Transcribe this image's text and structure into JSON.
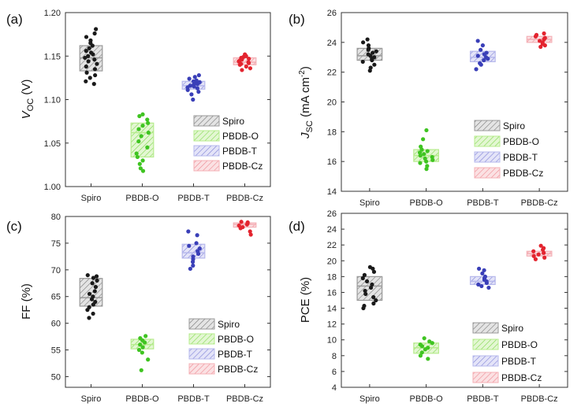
{
  "colors": {
    "Spiro": {
      "fill": "#9a9a9a",
      "dot": "#1a1a1a"
    },
    "PBDB-O": {
      "fill": "#b7ec8e",
      "dot": "#3fc421"
    },
    "PBDB-T": {
      "fill": "#b6b8ec",
      "dot": "#3a3fb8"
    },
    "PBDB-Cz": {
      "fill": "#f4b0b6",
      "dot": "#e3242f"
    }
  },
  "chart_data": [
    {
      "type": "box",
      "panel_label": "(a)",
      "ylabel_main": "V",
      "ylabel_sub": "OC",
      "ylabel_unit": " (V)",
      "categories": [
        "Spiro",
        "PBDB-O",
        "PBDB-T",
        "PBDB-Cz"
      ],
      "ylim": [
        1.0,
        1.2
      ],
      "yticks": [
        "1.00",
        "1.05",
        "1.10",
        "1.15",
        "1.20"
      ],
      "legend": [
        "Spiro",
        "PBDB-O",
        "PBDB-T",
        "PBDB-Cz"
      ],
      "series": [
        {
          "name": "Spiro",
          "q1": 1.133,
          "median": 1.148,
          "q3": 1.162,
          "points": [
            1.118,
            1.121,
            1.125,
            1.128,
            1.131,
            1.135,
            1.138,
            1.141,
            1.144,
            1.146,
            1.148,
            1.15,
            1.152,
            1.154,
            1.156,
            1.159,
            1.162,
            1.165,
            1.168,
            1.172,
            1.176,
            1.181
          ]
        },
        {
          "name": "PBDB-O",
          "q1": 1.034,
          "median": 1.062,
          "q3": 1.073,
          "points": [
            1.018,
            1.021,
            1.026,
            1.03,
            1.034,
            1.038,
            1.045,
            1.052,
            1.058,
            1.062,
            1.066,
            1.07,
            1.073,
            1.077,
            1.081,
            1.083
          ]
        },
        {
          "name": "PBDB-T",
          "q1": 1.112,
          "median": 1.116,
          "q3": 1.121,
          "points": [
            1.1,
            1.106,
            1.109,
            1.111,
            1.113,
            1.114,
            1.115,
            1.116,
            1.117,
            1.118,
            1.119,
            1.12,
            1.121,
            1.122,
            1.124,
            1.126,
            1.128
          ]
        },
        {
          "name": "PBDB-Cz",
          "q1": 1.14,
          "median": 1.143,
          "q3": 1.148,
          "points": [
            1.134,
            1.136,
            1.138,
            1.14,
            1.141,
            1.142,
            1.143,
            1.144,
            1.145,
            1.146,
            1.147,
            1.148,
            1.149,
            1.15,
            1.152
          ]
        }
      ]
    },
    {
      "type": "box",
      "panel_label": "(b)",
      "ylabel_main": "J",
      "ylabel_sub": "SC",
      "ylabel_unit": " (mA cm",
      "ylabel_sup": "-2",
      "ylabel_close": ")",
      "categories": [
        "Spiro",
        "PBDB-O",
        "PBDB-T",
        "PBDB-Cz"
      ],
      "ylim": [
        14,
        26
      ],
      "yticks": [
        "14",
        "16",
        "18",
        "20",
        "22",
        "24",
        "26"
      ],
      "legend": [
        "Spiro",
        "PBDB-O",
        "PBDB-T",
        "PBDB-Cz"
      ],
      "series": [
        {
          "name": "Spiro",
          "q1": 22.8,
          "median": 23.1,
          "q3": 23.6,
          "points": [
            22.1,
            22.3,
            22.5,
            22.7,
            22.8,
            22.9,
            23.0,
            23.1,
            23.2,
            23.3,
            23.4,
            23.5,
            23.6,
            23.8,
            24.0,
            24.2
          ]
        },
        {
          "name": "PBDB-O",
          "q1": 16.0,
          "median": 16.4,
          "q3": 16.8,
          "points": [
            15.5,
            15.7,
            15.9,
            16.0,
            16.1,
            16.2,
            16.3,
            16.4,
            16.5,
            16.6,
            16.7,
            16.8,
            17.0,
            17.5,
            18.1
          ]
        },
        {
          "name": "PBDB-T",
          "q1": 22.7,
          "median": 23.0,
          "q3": 23.4,
          "points": [
            22.2,
            22.5,
            22.6,
            22.8,
            22.9,
            23.0,
            23.1,
            23.2,
            23.3,
            23.5,
            23.8,
            24.1
          ]
        },
        {
          "name": "PBDB-Cz",
          "q1": 24.0,
          "median": 24.2,
          "q3": 24.4,
          "points": [
            23.7,
            23.8,
            23.9,
            24.0,
            24.1,
            24.2,
            24.3,
            24.4,
            24.5,
            24.6
          ]
        }
      ]
    },
    {
      "type": "box",
      "panel_label": "(c)",
      "ylabel_main": "FF (%)",
      "categories": [
        "Spiro",
        "PBDB-O",
        "PBDB-T",
        "PBDB-Cz"
      ],
      "ylim": [
        48,
        80
      ],
      "yticks": [
        "50",
        "55",
        "60",
        "65",
        "70",
        "75",
        "80"
      ],
      "ytick_values": [
        50,
        55,
        60,
        65,
        70,
        75,
        80
      ],
      "legend": [
        "Spiro",
        "PBDB-O",
        "PBDB-T",
        "PBDB-Cz"
      ],
      "series": [
        {
          "name": "Spiro",
          "q1": 63.2,
          "median": 64.8,
          "q3": 68.4,
          "points": [
            61.0,
            61.8,
            62.5,
            63.0,
            63.5,
            64.0,
            64.5,
            65.0,
            65.5,
            66.0,
            66.8,
            67.5,
            68.0,
            68.5,
            68.8,
            69.0
          ]
        },
        {
          "name": "PBDB-O",
          "q1": 55.2,
          "median": 56.0,
          "q3": 57.0,
          "points": [
            51.2,
            53.2,
            54.5,
            55.0,
            55.5,
            56.0,
            56.4,
            56.8,
            57.2,
            57.6
          ]
        },
        {
          "name": "PBDB-T",
          "q1": 72.2,
          "median": 73.2,
          "q3": 74.8,
          "points": [
            70.2,
            70.8,
            71.5,
            72.0,
            72.5,
            73.0,
            73.5,
            74.0,
            74.5,
            75.0,
            76.5,
            77.2
          ]
        },
        {
          "name": "PBDB-Cz",
          "q1": 78.0,
          "median": 78.5,
          "q3": 78.8,
          "points": [
            76.6,
            77.2,
            77.8,
            78.0,
            78.3,
            78.5,
            78.7,
            78.9,
            79.0
          ]
        }
      ]
    },
    {
      "type": "box",
      "panel_label": "(d)",
      "ylabel_main": "PCE (%)",
      "categories": [
        "Spiro",
        "PBDB-O",
        "PBDB-T",
        "PBDB-Cz"
      ],
      "ylim": [
        4,
        26
      ],
      "yticks": [
        "4",
        "6",
        "8",
        "10",
        "12",
        "14",
        "16",
        "18",
        "20",
        "22",
        "24",
        "26"
      ],
      "legend": [
        "Spiro",
        "PBDB-O",
        "PBDB-T",
        "PBDB-Cz"
      ],
      "series": [
        {
          "name": "Spiro",
          "q1": 15.0,
          "median": 16.8,
          "q3": 18.0,
          "points": [
            14.0,
            14.3,
            14.6,
            15.0,
            15.4,
            15.8,
            16.2,
            16.6,
            17.0,
            17.4,
            17.8,
            18.2,
            18.6,
            19.0,
            19.2
          ]
        },
        {
          "name": "PBDB-O",
          "q1": 8.3,
          "median": 9.0,
          "q3": 9.6,
          "points": [
            7.6,
            8.0,
            8.4,
            8.8,
            9.0,
            9.2,
            9.4,
            9.6,
            9.8,
            10.2
          ]
        },
        {
          "name": "PBDB-T",
          "q1": 17.0,
          "median": 17.4,
          "q3": 18.0,
          "points": [
            16.6,
            16.8,
            17.0,
            17.2,
            17.4,
            17.6,
            17.8,
            18.0,
            18.4,
            18.8,
            19.0
          ]
        },
        {
          "name": "PBDB-Cz",
          "q1": 20.6,
          "median": 20.9,
          "q3": 21.2,
          "points": [
            20.2,
            20.4,
            20.6,
            20.8,
            21.0,
            21.2,
            21.4,
            21.6,
            21.9
          ]
        }
      ]
    }
  ]
}
